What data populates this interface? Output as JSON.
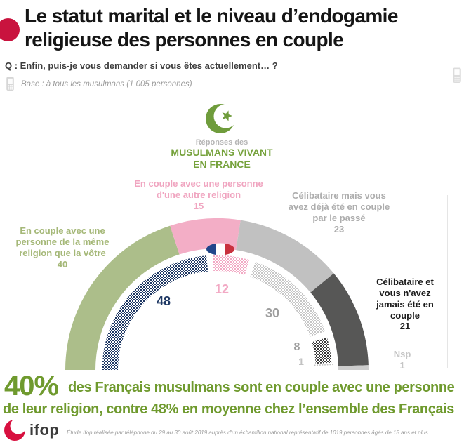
{
  "colors": {
    "accent_red": "#C9133E",
    "title_text": "#151515",
    "question_text": "#3D3D3D",
    "base_text": "#9B9B9B",
    "badge_green": "#76A23C",
    "stat_green": "#6F9A2E",
    "logo_red": "#D8103F"
  },
  "header": {
    "title_line1": "Le statut marital et le niveau d’endogamie",
    "title_line2": "religieuse des personnes en couple",
    "question": "Q : Enfin, puis-je vous demander si vous êtes actuellement… ?",
    "base": "Base : à tous les musulmans (1 005 personnes)"
  },
  "badge": {
    "subtitle": "Réponses des",
    "title_line1": "MUSULMANS VIVANT",
    "title_line2": "EN FRANCE"
  },
  "chart_data": {
    "type": "half-donut",
    "orientation": "semicircle, 180° span, left to right clockwise",
    "unit": "%",
    "categories": [
      "En couple avec une personne de la même religion que la vôtre",
      "En couple avec une personne d'une autre religion",
      "Célibataire mais vous avez déjà été en couple par le passé",
      "Célibataire et vous n'avez jamais été en couple",
      "Nsp"
    ],
    "series": [
      {
        "name": "Musulmans vivant en France",
        "ring": "outer",
        "style": "solid",
        "values": [
          40,
          15,
          23,
          21,
          1
        ]
      },
      {
        "name": "Ensemble des Français",
        "ring": "inner",
        "style": "checker-pattern",
        "values": [
          48,
          12,
          30,
          8,
          1
        ]
      }
    ],
    "outer_colors": [
      "#ACBE8A",
      "#F3AEC6",
      "#C1C1C1",
      "#575756",
      "#CDCDCD"
    ],
    "inner_colors": [
      "#1F3864",
      "#F2A9C4",
      "#C6C6C6",
      "#3A3A3A",
      "#BFBFBF"
    ],
    "center_icon": "france-flag",
    "legend_position": "labels around arc"
  },
  "labels": {
    "same_religion": {
      "lines": [
        "En couple avec une",
        "personne de la même",
        "religion que la vôtre"
      ]
    },
    "other_religion": {
      "lines": [
        "En couple avec une personne",
        "d'une autre religion"
      ]
    },
    "single_past": {
      "lines": [
        "Célibataire mais vous",
        "avez déjà été en couple",
        "par le passé"
      ]
    },
    "single_never": {
      "lines": [
        "Célibataire et",
        "vous n'avez",
        "jamais été en",
        "couple"
      ]
    },
    "nsp": {
      "label": "Nsp"
    }
  },
  "footer": {
    "stat": "40%",
    "line1": "des Français musulmans sont en couple avec une personne",
    "line2": "de leur religion, contre 48% en moyenne chez l’ensemble des Français",
    "source": "Étude Ifop réalisée par téléphone du 29 au 30 août 2019 auprès d'un échantillon national représentatif de 1019 personnes âgés de 18 ans et plus.",
    "logo": "ifop"
  }
}
